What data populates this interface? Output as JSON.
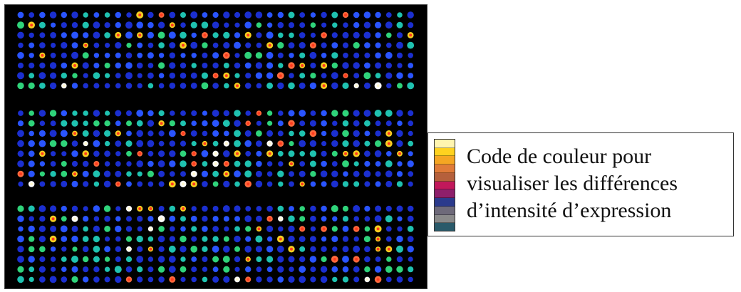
{
  "legend": {
    "lines": [
      "Code de couleur pour",
      "visualiser les différences",
      "d’intensité d’expression"
    ],
    "scale_colors": [
      "#fff5b0",
      "#ffd21f",
      "#f5a623",
      "#e07b39",
      "#b5603c",
      "#c2185b",
      "#8e1f6b",
      "#2b3a8c",
      "#6e6a7a",
      "#8a8a8a",
      "#2a5a6a"
    ]
  },
  "array_colors": {
    "background": "#000000",
    "low": "#1b2fd0",
    "low2": "#2a54ff",
    "mid": "#1fc2b0",
    "mid2": "#2fd37a",
    "high": "#f5d020",
    "very_high": "#ffffff",
    "hot": "#ff6a3d"
  }
}
